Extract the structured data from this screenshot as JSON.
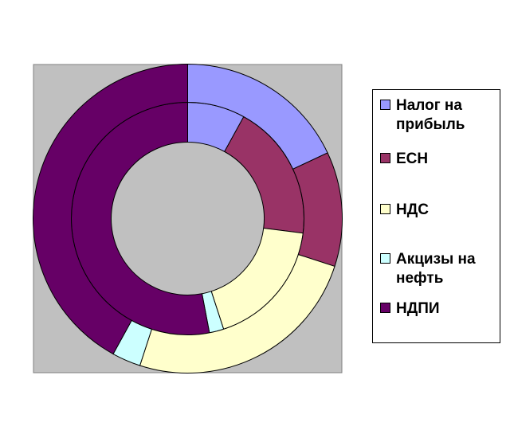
{
  "chart_data": {
    "type": "doughnut",
    "title": "",
    "series": [
      {
        "ring": "inner",
        "values": [
          8,
          19,
          18,
          2,
          53
        ]
      },
      {
        "ring": "outer",
        "values": [
          18,
          12,
          25,
          3,
          42
        ]
      }
    ],
    "categories": [
      "Налог на прибыль",
      "ЕСН",
      "НДС",
      "Акцизы на нефть",
      "НДПИ"
    ],
    "colors": [
      "#9999ff",
      "#993366",
      "#ffffcc",
      "#ccffff",
      "#660066"
    ],
    "plot_area_color": "#c0c0c0",
    "legend_position": "right"
  }
}
